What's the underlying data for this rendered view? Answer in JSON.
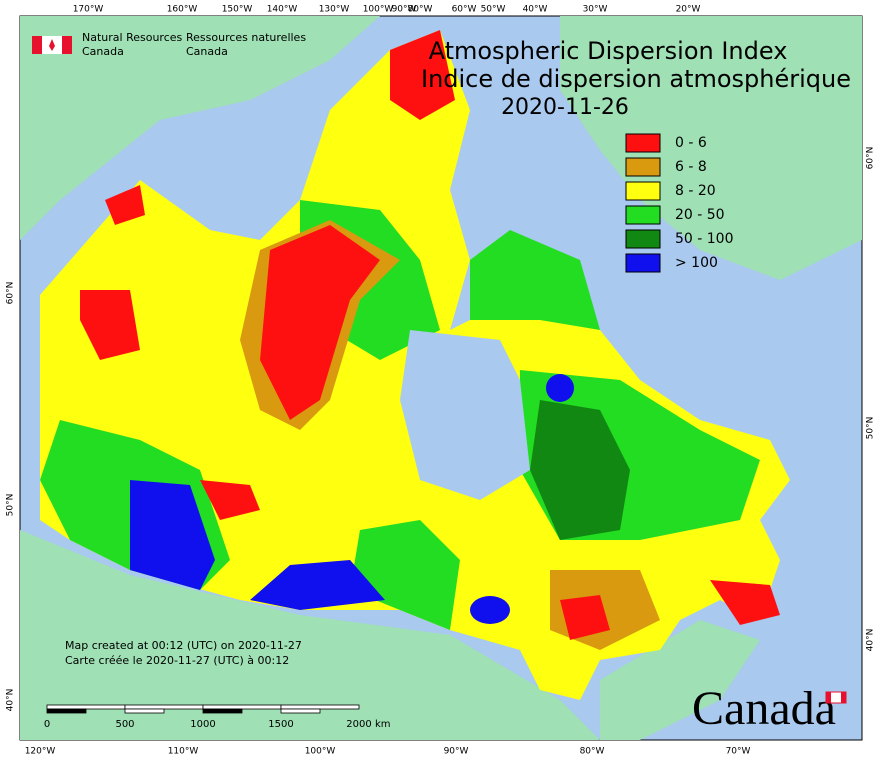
{
  "header": {
    "org_en": [
      "Natural Resources",
      "Canada"
    ],
    "org_fr": [
      "Ressources naturelles",
      "Canada"
    ]
  },
  "title": [
    "Atmospheric Dispersion Index",
    "Indice de dispersion atmosphérique",
    "2020-11-26"
  ],
  "legend": [
    {
      "label": "0 - 6",
      "color": "#ff1010"
    },
    {
      "label": "6 - 8",
      "color": "#d99a10"
    },
    {
      "label": "8 - 20",
      "color": "#ffff10"
    },
    {
      "label": "20 - 50",
      "color": "#22dd22"
    },
    {
      "label": "50 - 100",
      "color": "#118811"
    },
    {
      "label": "> 100",
      "color": "#1010ee"
    }
  ],
  "graticule": {
    "top": [
      "170°W",
      "160°W",
      "150°W",
      "140°W",
      "130°W",
      "100°W",
      "90°W",
      "80°W",
      "60°W",
      "50°W",
      "40°W",
      "30°W",
      "20°W"
    ],
    "bottom": [
      "120°W",
      "110°W",
      "100°W",
      "90°W",
      "80°W",
      "70°W"
    ],
    "left": [
      "60°N",
      "50°N",
      "40°N"
    ],
    "right": [
      "60°N",
      "50°N",
      "40°N"
    ]
  },
  "notes": [
    "Map created at 00:12 (UTC) on 2020-11-27",
    "Carte créée le 2020-11-27 (UTC) à 00:12"
  ],
  "scale": {
    "ticks": [
      0,
      500,
      1000,
      1500,
      2000
    ],
    "unit": "km"
  },
  "wordmark": "Canada"
}
